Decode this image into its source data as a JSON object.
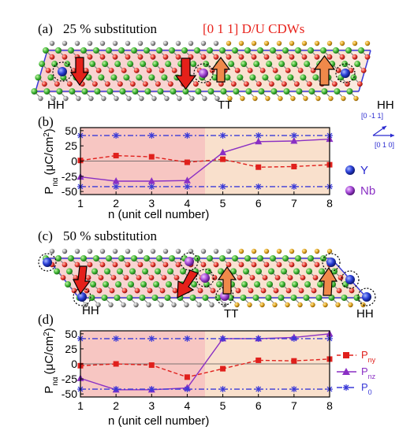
{
  "figure": {
    "panel_a": {
      "letter": "(a)",
      "title": "25 % substitution",
      "cdw_label": "[0 1 1] D/U  CDWs",
      "wall_left": "HH",
      "wall_mid": "TT",
      "wall_right": "HH"
    },
    "panel_b": {
      "letter": "(b)"
    },
    "panel_c": {
      "letter": "(c)",
      "title": "50 % substitution",
      "wall_left": "HH",
      "wall_mid": "TT",
      "wall_right": "HH"
    },
    "panel_d": {
      "letter": "(d)"
    },
    "direction_labels": {
      "d1": "[0 -1 1]",
      "d2": "[0 1 0]"
    },
    "atom_legend": {
      "y": "Y",
      "nb": "Nb"
    },
    "series_legend": {
      "pny": "P",
      "pny_sub": "ny",
      "pnz": "P",
      "pnz_sub": "nz",
      "p0": "P",
      "p0_sub": "0"
    },
    "ylabel_main": "P",
    "ylabel_sub": "nα",
    "ylabel_unit": "(μC/cm",
    "ylabel_sup": "2",
    "ylabel_close": ")",
    "xlabel": "n (unit cell number)"
  },
  "chart_data": [
    {
      "type": "line",
      "panel": "(b)",
      "x": [
        1,
        2,
        3,
        4,
        5,
        6,
        7,
        8
      ],
      "xlim": [
        1,
        8
      ],
      "ylim": [
        -55,
        55
      ],
      "yticks": [
        -50,
        -25,
        0,
        25,
        50
      ],
      "xticks": [
        1,
        2,
        3,
        4,
        5,
        6,
        7,
        8
      ],
      "xlabel": "n (unit cell number)",
      "ylabel": "Pnα (μC/cm2)",
      "shading": [
        {
          "from": 1,
          "to": 4.5,
          "color": "#f7c6c2"
        },
        {
          "from": 4.5,
          "to": 8,
          "color": "#f9e0cc"
        }
      ],
      "series": [
        {
          "key": "pny",
          "marker": "square",
          "color": "#e0201c",
          "dash": "5,3",
          "values": [
            1,
            9,
            7,
            -2,
            3,
            -10,
            -9,
            -6
          ]
        },
        {
          "key": "pnz",
          "marker": "triangle",
          "color": "#8a2fc4",
          "dash": "",
          "values": [
            -26,
            -33,
            -33,
            -32,
            14,
            32,
            33,
            36
          ]
        },
        {
          "key": "p0",
          "marker": "star",
          "color": "#3a3ad8",
          "dash": "7,3,2,3",
          "values": [
            42,
            42,
            42,
            42,
            42,
            42,
            42,
            42
          ]
        },
        {
          "key": "p0neg",
          "marker": "star",
          "color": "#3a3ad8",
          "dash": "7,3,2,3",
          "values": [
            -42,
            -42,
            -42,
            -42,
            -42,
            -42,
            -42,
            -42
          ]
        }
      ]
    },
    {
      "type": "line",
      "panel": "(d)",
      "x": [
        1,
        2,
        3,
        4,
        5,
        6,
        7,
        8
      ],
      "xlim": [
        1,
        8
      ],
      "ylim": [
        -55,
        55
      ],
      "yticks": [
        -50,
        -25,
        0,
        25,
        50
      ],
      "xticks": [
        1,
        2,
        3,
        4,
        5,
        6,
        7,
        8
      ],
      "xlabel": "n (unit cell number)",
      "ylabel": "Pnα (μC/cm2)",
      "shading": [
        {
          "from": 1,
          "to": 4.5,
          "color": "#f7c6c2"
        },
        {
          "from": 4.5,
          "to": 8,
          "color": "#f9e0cc"
        }
      ],
      "series": [
        {
          "key": "pny",
          "marker": "square",
          "color": "#e0201c",
          "dash": "5,3",
          "values": [
            -3,
            0,
            -2,
            -22,
            -8,
            6,
            5,
            8
          ]
        },
        {
          "key": "pnz",
          "marker": "triangle",
          "color": "#8a2fc4",
          "dash": "",
          "values": [
            -24,
            -43,
            -43,
            -40,
            42,
            42,
            44,
            50
          ]
        },
        {
          "key": "p0",
          "marker": "star",
          "color": "#3a3ad8",
          "dash": "7,3,2,3",
          "values": [
            42,
            42,
            42,
            42,
            42,
            42,
            42,
            42
          ]
        },
        {
          "key": "p0neg",
          "marker": "star",
          "color": "#3a3ad8",
          "dash": "7,3,2,3",
          "values": [
            -42,
            -42,
            -42,
            -42,
            -42,
            -42,
            -42,
            -42
          ]
        }
      ]
    }
  ]
}
